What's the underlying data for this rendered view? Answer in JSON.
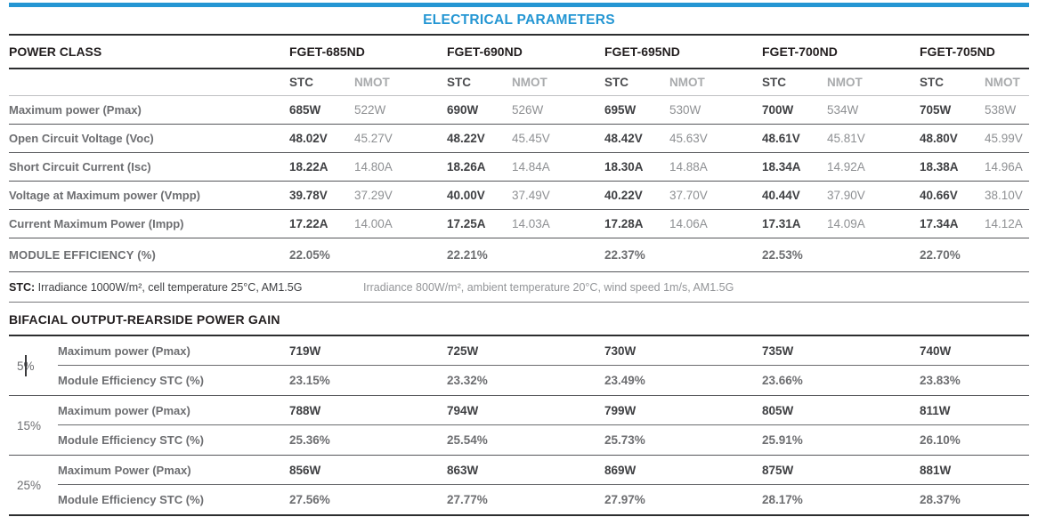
{
  "accent_color": "#2496d3",
  "title": "ELECTRICAL PARAMETERS",
  "power_class_label": "POWER CLASS",
  "models": [
    "FGET-685ND",
    "FGET-690ND",
    "FGET-695ND",
    "FGET-700ND",
    "FGET-705ND"
  ],
  "condition_headers": {
    "stc": "STC",
    "nmot": "NMOT"
  },
  "electrical_rows": [
    {
      "label": "Maximum power (Pmax)",
      "values": [
        [
          "685W",
          "522W"
        ],
        [
          "690W",
          "526W"
        ],
        [
          "695W",
          "530W"
        ],
        [
          "700W",
          "534W"
        ],
        [
          "705W",
          "538W"
        ]
      ]
    },
    {
      "label": "Open Circuit Voltage (Voc)",
      "values": [
        [
          "48.02V",
          "45.27V"
        ],
        [
          "48.22V",
          "45.45V"
        ],
        [
          "48.42V",
          "45.63V"
        ],
        [
          "48.61V",
          "45.81V"
        ],
        [
          "48.80V",
          "45.99V"
        ]
      ]
    },
    {
      "label": "Short Circuit Current (Isc)",
      "values": [
        [
          "18.22A",
          "14.80A"
        ],
        [
          "18.26A",
          "14.84A"
        ],
        [
          "18.30A",
          "14.88A"
        ],
        [
          "18.34A",
          "14.92A"
        ],
        [
          "18.38A",
          "14.96A"
        ]
      ]
    },
    {
      "label": "Voltage at Maximum power (Vmpp)",
      "values": [
        [
          "39.78V",
          "37.29V"
        ],
        [
          "40.00V",
          "37.49V"
        ],
        [
          "40.22V",
          "37.70V"
        ],
        [
          "40.44V",
          "37.90V"
        ],
        [
          "40.66V",
          "38.10V"
        ]
      ]
    },
    {
      "label": "Current Maximum Power (Impp)",
      "values": [
        [
          "17.22A",
          "14.00A"
        ],
        [
          "17.25A",
          "14.03A"
        ],
        [
          "17.28A",
          "14.06A"
        ],
        [
          "17.31A",
          "14.09A"
        ],
        [
          "17.34A",
          "14.12A"
        ]
      ]
    }
  ],
  "efficiency_row": {
    "label": "MODULE EFFICIENCY (%)",
    "values": [
      "22.05%",
      "22.21%",
      "22.37%",
      "22.53%",
      "22.70%"
    ]
  },
  "footnotes": {
    "stc_bold": "STC:",
    "stc_text": " Irradiance 1000W/m², cell temperature 25°C, AM1.5G",
    "nmot_text": "Irradiance 800W/m², ambient temperature 20°C, wind speed 1m/s, AM1.5G"
  },
  "bifacial": {
    "heading": "BIFACIAL OUTPUT-REARSIDE POWER GAIN",
    "groups": [
      {
        "gain": "5%",
        "rows": [
          {
            "label": "Maximum power (Pmax)",
            "values": [
              "719W",
              "725W",
              "730W",
              "735W",
              "740W"
            ]
          },
          {
            "label": "Module Efficiency STC (%)",
            "values": [
              "23.15%",
              "23.32%",
              "23.49%",
              "23.66%",
              "23.83%"
            ]
          }
        ]
      },
      {
        "gain": "15%",
        "rows": [
          {
            "label": "Maximum power (Pmax)",
            "values": [
              "788W",
              "794W",
              "799W",
              "805W",
              "811W"
            ]
          },
          {
            "label": "Module Efficiency STC (%)",
            "values": [
              "25.36%",
              "25.54%",
              "25.73%",
              "25.91%",
              "26.10%"
            ]
          }
        ]
      },
      {
        "gain": "25%",
        "rows": [
          {
            "label": "Maximum Power (Pmax)",
            "values": [
              "856W",
              "863W",
              "869W",
              "875W",
              "881W"
            ]
          },
          {
            "label": "Module Efficiency STC (%)",
            "values": [
              "27.56%",
              "27.77%",
              "27.97%",
              "28.17%",
              "28.37%"
            ]
          }
        ]
      }
    ]
  }
}
